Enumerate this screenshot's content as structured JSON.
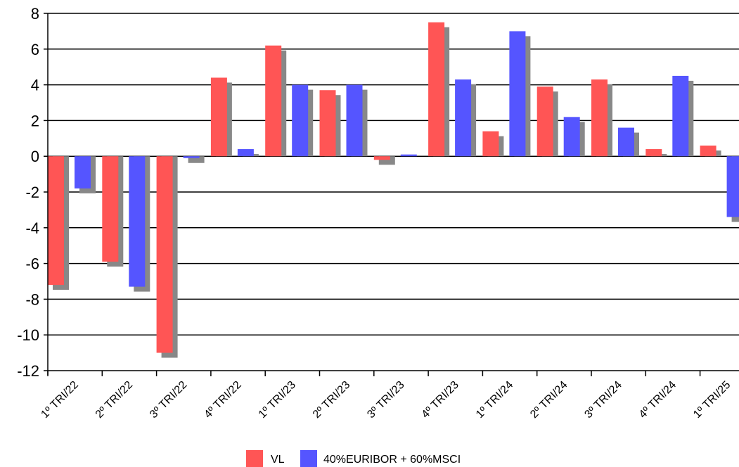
{
  "chart_data": {
    "type": "bar",
    "categories": [
      "1º TRI/22",
      "2º TRI/22",
      "3º TRI/22",
      "4º TRI/22",
      "1º TRI/23",
      "2º TRI/23",
      "3º TRI/23",
      "4º TRI/23",
      "1º TRI/24",
      "2º TRI/24",
      "3º TRI/24",
      "4º TRI/24",
      "1º TRI/25"
    ],
    "series": [
      {
        "name": "VL",
        "values": [
          -7.2,
          -5.9,
          -11.0,
          4.4,
          6.2,
          3.7,
          -0.2,
          7.5,
          1.4,
          3.9,
          4.3,
          0.4,
          0.6
        ],
        "color": "#ff5555"
      },
      {
        "name": "40%EURIBOR + 60%MSCI",
        "values": [
          -1.8,
          -7.3,
          -0.1,
          0.4,
          4.0,
          4.0,
          0.1,
          4.3,
          7.0,
          2.2,
          1.6,
          4.5,
          -3.4
        ],
        "color": "#5555ff"
      }
    ],
    "shadow_color": "#888888",
    "title": "",
    "xlabel": "",
    "ylabel": "",
    "ylim": [
      -12,
      8
    ],
    "yticks": [
      8,
      6,
      4,
      2,
      0,
      -2,
      -4,
      -6,
      -8,
      -10,
      -12
    ],
    "grid": true,
    "legend_position": "bottom-center"
  }
}
